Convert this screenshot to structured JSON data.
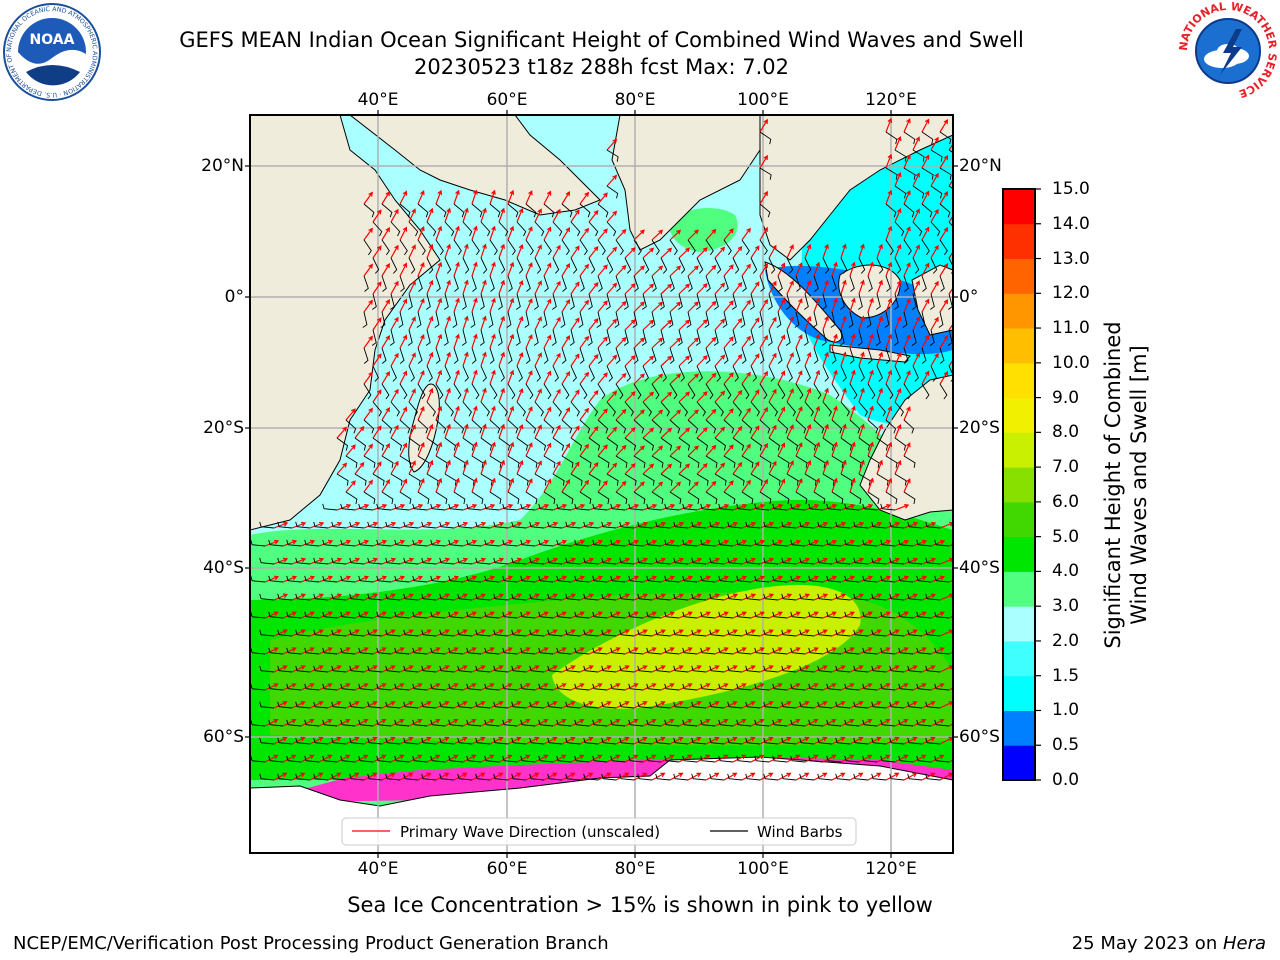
{
  "title": {
    "line1": "GEFS MEAN Indian Ocean Significant Height of Combined Wind Waves and Swell",
    "line2": "20230523 t18z 288h fcst   Max: 7.02"
  },
  "logos": {
    "left": {
      "name": "noaa-logo",
      "text": "NOAA",
      "ring_text": "NATIONAL OCEANIC AND ATMOSPHERIC ADMINISTRATION · U.S. DEPARTMENT OF COMMERCE"
    },
    "right": {
      "name": "nws-logo",
      "ring_text": "NATIONAL WEATHER SERVICE"
    }
  },
  "map": {
    "lon_labels": [
      "40°E",
      "60°E",
      "80°E",
      "100°E",
      "120°E"
    ],
    "lat_labels": [
      "20°N",
      "0°",
      "20°S",
      "40°S",
      "60°S"
    ],
    "legend": {
      "wave_direction": "Primary Wave Direction (unscaled)",
      "wind_barbs": "Wind Barbs"
    },
    "colors": {
      "land": "#efecdc",
      "ice_shelf": "#ffffff",
      "gridline": "#b0b0b0",
      "wave_arrow": "#ff0000",
      "barb": "#000000"
    }
  },
  "colorbar": {
    "label_line1": "Significant Height of Combined",
    "label_line2": "Wind Waves and Swell [m]",
    "ticks": [
      "0.0",
      "0.5",
      "1.0",
      "1.5",
      "2.0",
      "3.0",
      "4.0",
      "5.0",
      "6.0",
      "7.0",
      "8.0",
      "9.0",
      "10.0",
      "11.0",
      "12.0",
      "13.0",
      "14.0",
      "15.0"
    ],
    "colors": [
      "#0000ff",
      "#0080ff",
      "#00ffff",
      "#40ffff",
      "#aaffff",
      "#50ff80",
      "#00e600",
      "#40d800",
      "#88e000",
      "#c8f000",
      "#f0f000",
      "#ffe000",
      "#ffbf00",
      "#ff9600",
      "#ff6400",
      "#ff3000",
      "#ff0000"
    ]
  },
  "footer": {
    "sea_ice_note": "Sea Ice Concentration > 15% is shown in pink to yellow",
    "branch": "NCEP/EMC/Verification Post Processing Product Generation Branch",
    "date_prefix": "25 May 2023 on ",
    "machine": "Hera"
  }
}
